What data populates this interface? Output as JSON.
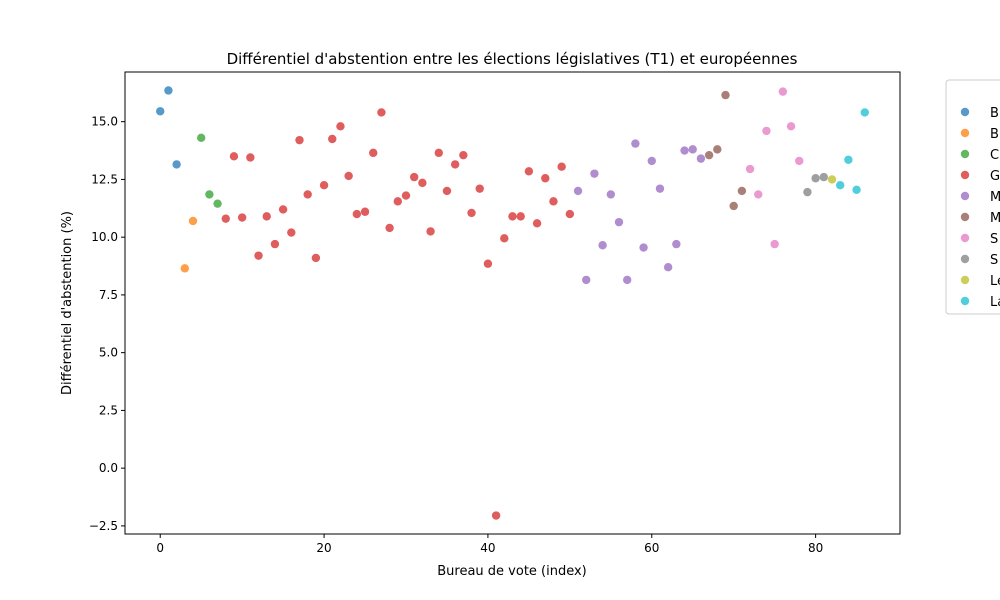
{
  "chart_data": {
    "type": "scatter",
    "title": "Différentiel d'abstention entre les élections législatives (T1) et européennes",
    "xlabel": "Bureau de vote (index)",
    "ylabel": "Différentiel d'abstention (%)",
    "xlim": [
      -4.3,
      90.3
    ],
    "ylim": [
      -2.85,
      17.15
    ],
    "xticks": [
      0,
      20,
      40,
      60,
      80
    ],
    "yticks": [
      -2.5,
      0.0,
      2.5,
      5.0,
      7.5,
      10.0,
      12.5,
      15.0
    ],
    "ytick_labels": [
      "−2.5",
      "0.0",
      "2.5",
      "5.0",
      "7.5",
      "10.0",
      "12.5",
      "15.0"
    ],
    "grid": false,
    "legend_position": "right, partially cut off",
    "series": [
      {
        "name": "B",
        "color": "#1f77b4",
        "x": [
          0,
          1,
          2
        ],
        "y": [
          15.45,
          16.35,
          13.15
        ]
      },
      {
        "name": "B",
        "color": "#ff7f0e",
        "x": [
          3,
          4
        ],
        "y": [
          8.65,
          10.7
        ]
      },
      {
        "name": "C",
        "color": "#2ca02c",
        "x": [
          5,
          6,
          7
        ],
        "y": [
          14.3,
          11.85,
          11.45
        ]
      },
      {
        "name": "G",
        "color": "#d62728",
        "x": [
          8,
          9,
          10,
          11,
          12,
          13,
          14,
          15,
          16,
          17,
          18,
          19,
          20,
          21,
          22,
          23,
          24,
          25,
          26,
          27,
          28,
          29,
          30,
          31,
          32,
          33,
          34,
          35,
          36,
          37,
          38,
          39,
          40,
          41,
          42,
          43,
          44,
          45,
          46,
          47,
          48,
          49,
          50
        ],
        "y": [
          10.8,
          13.5,
          10.85,
          13.45,
          9.2,
          10.9,
          9.7,
          11.2,
          10.2,
          14.2,
          11.85,
          9.1,
          12.25,
          14.25,
          14.8,
          12.65,
          11.0,
          11.1,
          13.65,
          15.4,
          10.4,
          11.55,
          11.8,
          12.6,
          12.35,
          10.25,
          13.65,
          12.0,
          13.15,
          13.55,
          11.05,
          12.1,
          8.85,
          -2.05,
          9.95,
          10.9,
          10.9,
          12.85,
          10.6,
          12.55,
          11.55,
          13.05,
          11.0
        ]
      },
      {
        "name": "M",
        "color": "#9467bd",
        "x": [
          51,
          52,
          53,
          54,
          55,
          56,
          57,
          58,
          59,
          60,
          61,
          62,
          63,
          64,
          65,
          66
        ],
        "y": [
          12.0,
          8.15,
          12.75,
          9.65,
          11.85,
          10.65,
          8.15,
          14.05,
          9.55,
          13.3,
          12.1,
          8.7,
          9.7,
          13.75,
          13.8,
          13.4
        ]
      },
      {
        "name": "M",
        "color": "#8c564b",
        "x": [
          67,
          68,
          69,
          70,
          71
        ],
        "y": [
          13.55,
          13.8,
          16.15,
          11.35,
          12.0
        ]
      },
      {
        "name": "S",
        "color": "#e377c2",
        "x": [
          72,
          73,
          74,
          75,
          76,
          77,
          78
        ],
        "y": [
          12.95,
          11.85,
          14.6,
          9.7,
          16.3,
          14.8,
          13.3
        ]
      },
      {
        "name": "S",
        "color": "#7f7f7f",
        "x": [
          79,
          80,
          81
        ],
        "y": [
          11.95,
          12.55,
          12.6
        ]
      },
      {
        "name": "Le",
        "color": "#bcbd22",
        "x": [
          82
        ],
        "y": [
          12.5
        ]
      },
      {
        "name": "La",
        "color": "#17becf",
        "x": [
          83,
          84,
          85,
          86
        ],
        "y": [
          12.25,
          13.35,
          12.05,
          15.4
        ]
      }
    ]
  }
}
